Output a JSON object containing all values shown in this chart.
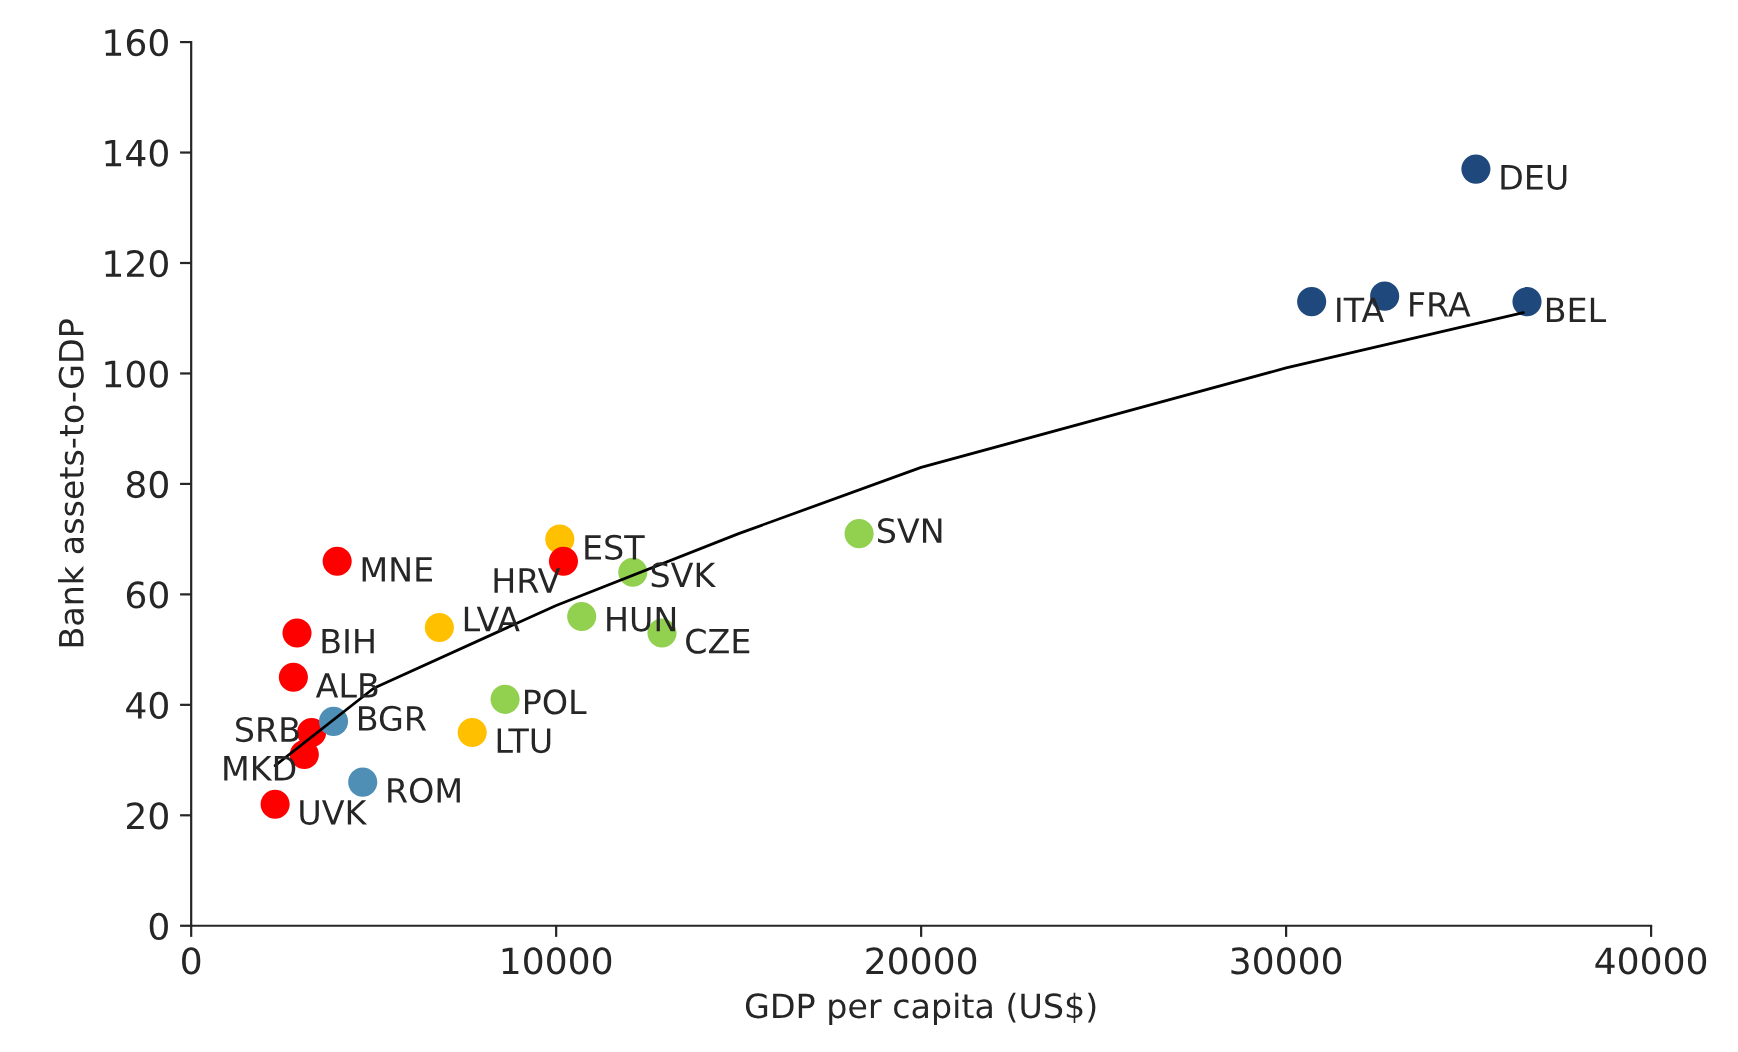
{
  "chart_data": {
    "type": "scatter",
    "xlabel": "GDP per capita (US$)",
    "ylabel": "Bank assets-to-GDP",
    "xlim": [
      0,
      40000
    ],
    "xticks": [
      0,
      10000,
      20000,
      30000,
      40000
    ],
    "ylim": [
      0,
      160
    ],
    "yticks": [
      0,
      20,
      40,
      60,
      80,
      100,
      120,
      140,
      160
    ],
    "grid": false,
    "legend": false,
    "marker": "circle",
    "series": [
      {
        "color": "#1f497d",
        "x": [
          35200,
          30700,
          32700,
          36600
        ],
        "values": [
          137,
          113,
          114,
          113
        ]
      },
      {
        "color": "#92d050",
        "x": [
          18300,
          12100,
          10700,
          12900,
          8600
        ],
        "values": [
          71,
          64,
          56,
          53,
          41
        ]
      },
      {
        "color": "#ffc000",
        "x": [
          10100,
          7700,
          6800
        ],
        "values": [
          70,
          35,
          54
        ]
      },
      {
        "color": "#ff0000",
        "x": [
          10200,
          4000,
          2900,
          2800,
          3300,
          3100,
          2300
        ],
        "values": [
          66,
          66,
          53,
          45,
          35,
          31,
          22
        ]
      },
      {
        "color": "#4f8fb5",
        "x": [
          3900,
          4700
        ],
        "values": [
          37,
          26
        ]
      },
      {
        "type": "line",
        "marker": "none",
        "color": "#000000",
        "x": [
          2300,
          5000,
          10000,
          15000,
          20000,
          25000,
          30000,
          36500
        ],
        "values": [
          29,
          43,
          58,
          71,
          83,
          92,
          101,
          111
        ]
      }
    ],
    "annotations": [
      {
        "text": "DEU",
        "x": 35200,
        "y": 137
      },
      {
        "text": "ITA",
        "x": 30700,
        "y": 113
      },
      {
        "text": "FRA",
        "x": 32700,
        "y": 114
      },
      {
        "text": "BEL",
        "x": 36600,
        "y": 113
      },
      {
        "text": "SVN",
        "x": 18300,
        "y": 71
      },
      {
        "text": "SVK",
        "x": 12100,
        "y": 64
      },
      {
        "text": "HUN",
        "x": 10700,
        "y": 56
      },
      {
        "text": "CZE",
        "x": 12900,
        "y": 53
      },
      {
        "text": "POL",
        "x": 8600,
        "y": 41
      },
      {
        "text": "EST",
        "x": 10100,
        "y": 70
      },
      {
        "text": "LTU",
        "x": 7700,
        "y": 35
      },
      {
        "text": "LVA",
        "x": 6800,
        "y": 54
      },
      {
        "text": "HRV",
        "x": 10200,
        "y": 66
      },
      {
        "text": "MNE",
        "x": 4000,
        "y": 66
      },
      {
        "text": "BIH",
        "x": 2900,
        "y": 53
      },
      {
        "text": "ALB",
        "x": 2800,
        "y": 45
      },
      {
        "text": "SRB",
        "x": 3300,
        "y": 35
      },
      {
        "text": "MKD",
        "x": 3100,
        "y": 31
      },
      {
        "text": "UVK",
        "x": 2300,
        "y": 22
      },
      {
        "text": "BGR",
        "x": 3900,
        "y": 37
      },
      {
        "text": "ROM",
        "x": 4700,
        "y": 26
      }
    ]
  }
}
